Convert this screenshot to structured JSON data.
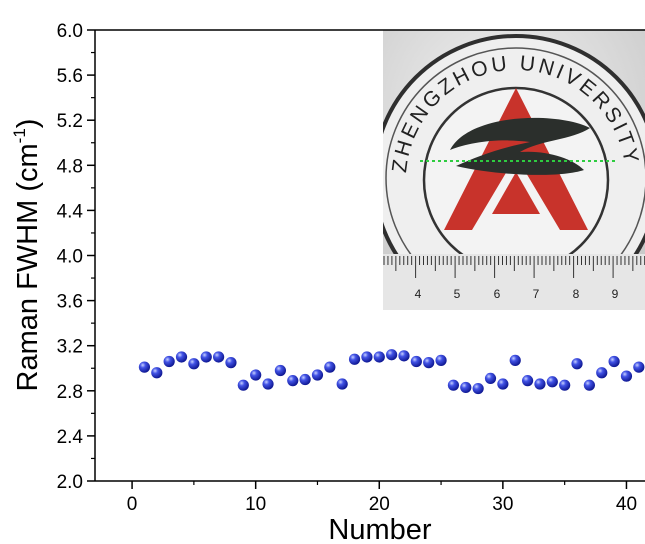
{
  "chart_data": {
    "type": "scatter",
    "xlabel": "Number",
    "ylabel": "Raman FWHM (cm",
    "ylabel_sup": "-1",
    "ylabel_close": ")",
    "xlim": [
      -3,
      41.5
    ],
    "ylim": [
      2.0,
      6.0
    ],
    "xticks": [
      0,
      10,
      20,
      30,
      40
    ],
    "xtick_labels": [
      "0",
      "10",
      "20",
      "30",
      "40"
    ],
    "yticks": [
      2.0,
      2.4,
      2.8,
      3.2,
      3.6,
      4.0,
      4.4,
      4.8,
      5.2,
      5.6,
      6.0
    ],
    "ytick_labels": [
      "2.0",
      "2.4",
      "2.8",
      "3.2",
      "3.6",
      "4.0",
      "4.4",
      "4.8",
      "5.2",
      "5.6",
      "6.0"
    ],
    "marker_color": "#1f2fc8",
    "series": [
      {
        "x": [
          1,
          2,
          3,
          4,
          5,
          6,
          7,
          8,
          9,
          10,
          11,
          12,
          13,
          14,
          15,
          16,
          17,
          18,
          19,
          20,
          21,
          22,
          23,
          24,
          25,
          26,
          27,
          28,
          29,
          30,
          31,
          32,
          33,
          34,
          35,
          36,
          37,
          38,
          39,
          40,
          41
        ],
        "y": [
          3.01,
          2.96,
          3.06,
          3.1,
          3.04,
          3.1,
          3.1,
          3.05,
          2.85,
          2.94,
          2.86,
          2.98,
          2.89,
          2.9,
          2.94,
          3.01,
          2.86,
          3.08,
          3.1,
          3.1,
          3.12,
          3.11,
          3.06,
          3.05,
          3.07,
          2.85,
          2.83,
          2.82,
          2.91,
          2.86,
          3.07,
          2.89,
          2.86,
          2.88,
          2.85,
          3.04,
          2.85,
          2.96,
          3.06,
          2.93,
          3.01
        ]
      }
    ],
    "inset": {
      "description": "photograph of a university seal over a ruler",
      "seal_text": "ZHENGZHOU UNIVERSITY",
      "ruler_labels": [
        "4",
        "5",
        "6",
        "7",
        "8",
        "9"
      ],
      "colors": {
        "seal_red": "#c8332b",
        "seal_dark": "#2b2f2c",
        "marker_line": "#2ecc40",
        "background": "#dcdcdc"
      }
    }
  }
}
